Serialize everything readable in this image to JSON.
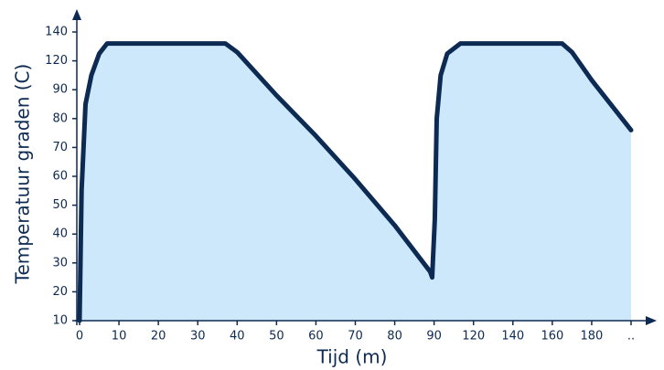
{
  "chart_data": {
    "type": "area",
    "xlabel": "Tijd (m)",
    "ylabel": "Temperatuur graden (C)",
    "x": [
      0,
      0.5,
      1.5,
      3,
      5,
      7,
      37,
      40,
      50,
      60,
      70,
      80,
      89,
      89.5,
      90.5,
      92,
      95,
      100,
      110,
      165,
      170,
      180,
      200
    ],
    "values": [
      10,
      55,
      85,
      105,
      125,
      132,
      132,
      126,
      88,
      74,
      59,
      43,
      27,
      25,
      45,
      80,
      105,
      125,
      132,
      132,
      126,
      100,
      76
    ],
    "color": "#0d2a52",
    "fill": "#cde7fb",
    "xlim": [
      0,
      200
    ],
    "ylim": [
      10,
      140
    ],
    "xticks": [
      0,
      10,
      20,
      30,
      40,
      50,
      60,
      70,
      80,
      90,
      120,
      140,
      160,
      180,
      {
        "value": 200,
        "label": ".."
      }
    ],
    "yticks": [
      10,
      20,
      30,
      40,
      50,
      60,
      70,
      80,
      90,
      120,
      140
    ]
  }
}
